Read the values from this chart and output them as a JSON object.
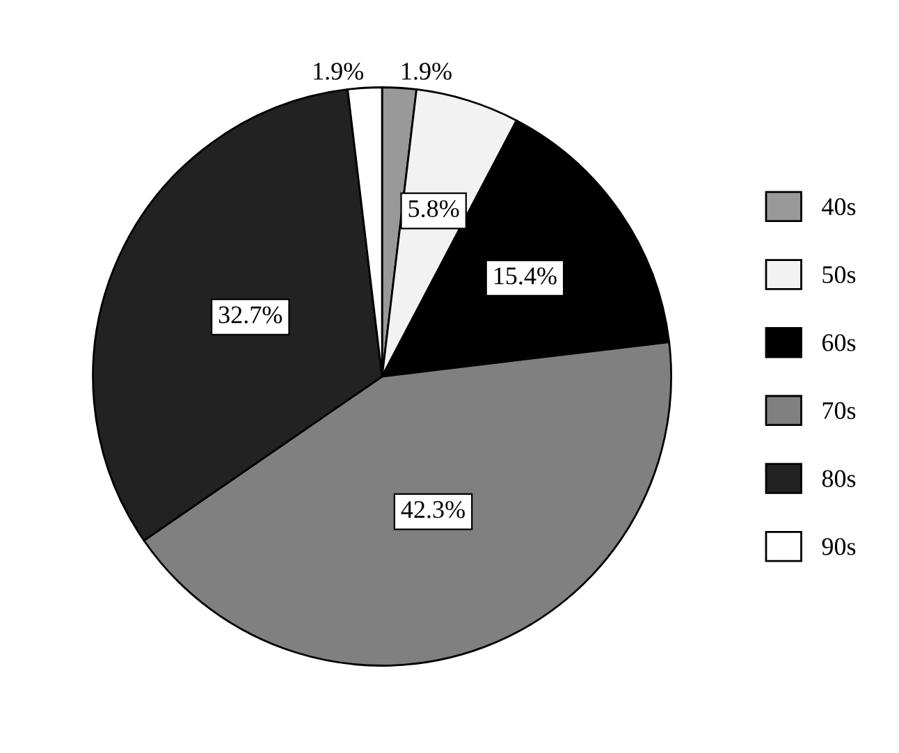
{
  "chart_data": {
    "type": "pie",
    "categories": [
      "40s",
      "50s",
      "60s",
      "70s",
      "80s",
      "90s"
    ],
    "values": [
      1.9,
      5.8,
      15.4,
      42.3,
      32.7,
      1.9
    ],
    "colors": [
      "#999999",
      "#f2f2f2",
      "#000000",
      "#808080",
      "#222222",
      "#ffffff"
    ],
    "value_labels": [
      "1.9%",
      "5.8%",
      "15.4%",
      "42.3%",
      "32.7%",
      "1.9%"
    ],
    "legend": "right"
  }
}
